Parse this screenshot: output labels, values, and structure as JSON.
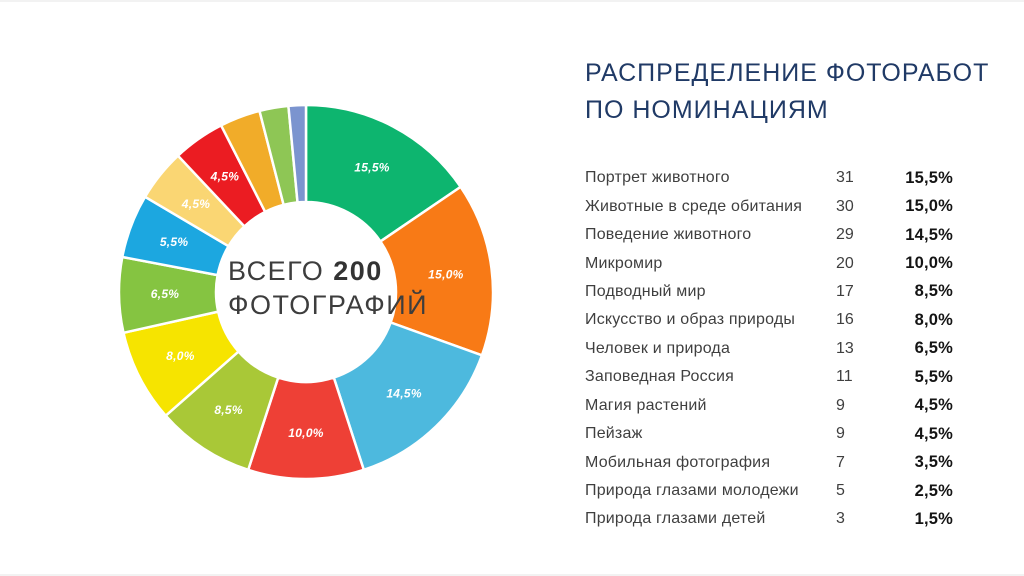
{
  "header": {
    "title_line1": "РАСПРЕДЕЛЕНИЕ ФОТОРАБОТ",
    "title_line2": "ПО НОМИНАЦИЯМ",
    "title_color": "#203a66"
  },
  "donut_center": {
    "prefix": "ВСЕГО",
    "total": "200",
    "suffix": "ФОТОГРАФИЙ"
  },
  "chart_data": {
    "type": "pie",
    "variant": "donut",
    "title": "РАСПРЕДЕЛЕНИЕ ФОТОРАБОТ ПО НОМИНАЦИЯМ",
    "center_label": "ВСЕГО 200 ФОТОГРАФИЙ",
    "total": 200,
    "start_angle_deg": 0,
    "direction": "clockwise",
    "hole_ratio": 0.48,
    "outer_radius_px": 187,
    "inner_radius_px": 90,
    "label_radius_px": 141,
    "separator_color": "#ffffff",
    "slices": [
      {
        "label": "Портрет животного",
        "count": 31,
        "pct": 15.5,
        "pct_label": "15,5%",
        "color": "#0db56f",
        "show_label": true
      },
      {
        "label": "Животные в среде обитания",
        "count": 30,
        "pct": 15.0,
        "pct_label": "15,0%",
        "color": "#f87a16",
        "show_label": true
      },
      {
        "label": "Поведение животного",
        "count": 29,
        "pct": 14.5,
        "pct_label": "14,5%",
        "color": "#4db9de",
        "show_label": true
      },
      {
        "label": "Микромир",
        "count": 20,
        "pct": 10.0,
        "pct_label": "10,0%",
        "color": "#ee4036",
        "show_label": true
      },
      {
        "label": "Подводный мир",
        "count": 17,
        "pct": 8.5,
        "pct_label": "8,5%",
        "color": "#a9c837",
        "show_label": true
      },
      {
        "label": "Искусство и образ природы",
        "count": 16,
        "pct": 8.0,
        "pct_label": "8,0%",
        "color": "#f6e400",
        "show_label": true
      },
      {
        "label": "Человек и природа",
        "count": 13,
        "pct": 6.5,
        "pct_label": "6,5%",
        "color": "#85c441",
        "show_label": true
      },
      {
        "label": "Заповедная Россия",
        "count": 11,
        "pct": 5.5,
        "pct_label": "5,5%",
        "color": "#1ca7e0",
        "show_label": true
      },
      {
        "label": "Магия растений",
        "count": 9,
        "pct": 4.5,
        "pct_label": "4,5%",
        "color": "#fad673",
        "show_label": true
      },
      {
        "label": "Пейзаж",
        "count": 9,
        "pct": 4.5,
        "pct_label": "4,5%",
        "color": "#eb1c22",
        "show_label": true
      },
      {
        "label": "Мобильная фотография",
        "count": 7,
        "pct": 3.5,
        "pct_label": "3,5%",
        "color": "#f1ac29",
        "show_label": false
      },
      {
        "label": "Природа глазами молодежи",
        "count": 5,
        "pct": 2.5,
        "pct_label": "2,5%",
        "color": "#8ec655",
        "show_label": false
      },
      {
        "label": "Природа глазами детей",
        "count": 3,
        "pct": 1.5,
        "pct_label": "1,5%",
        "color": "#7b94cf",
        "show_label": false
      }
    ]
  }
}
